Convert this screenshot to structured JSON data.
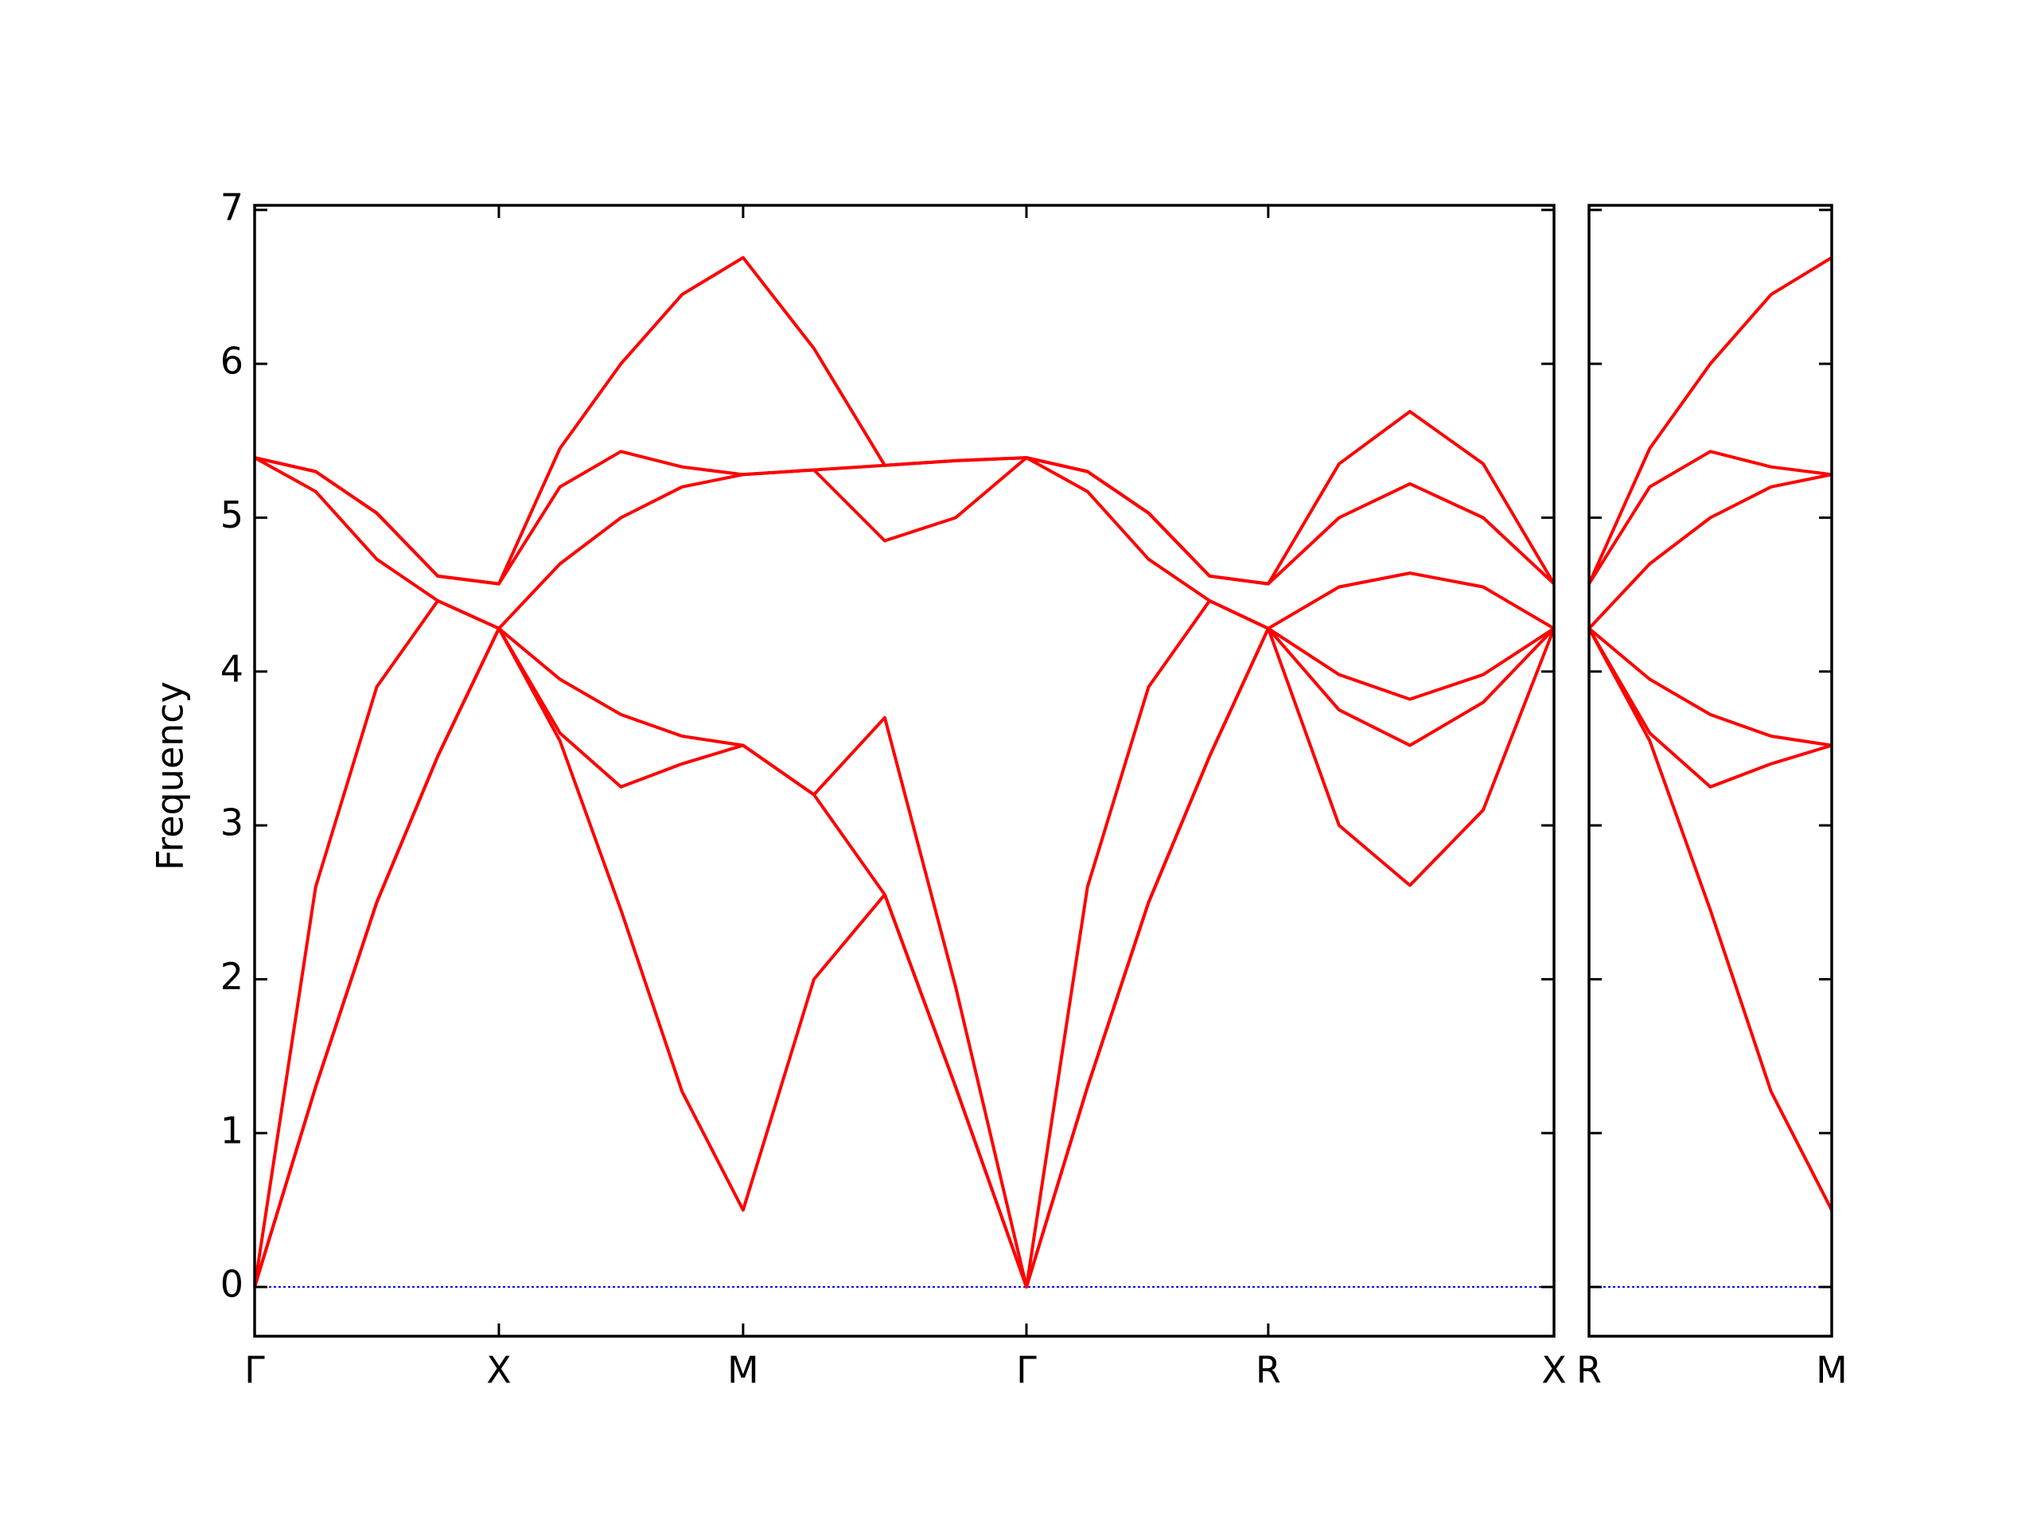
{
  "chart_data": [
    {
      "type": "line",
      "ylabel": "Frequency",
      "x": [
        0,
        0.25,
        0.5,
        0.75,
        1,
        1.25,
        1.5,
        1.75,
        2,
        2.29,
        2.58,
        2.87,
        3.16,
        3.41,
        3.66,
        3.91,
        4.15,
        4.44,
        4.73,
        5.03,
        5.32
      ],
      "xlim": [
        0,
        5.32
      ],
      "xticks": [
        {
          "value": 0,
          "label": "Γ"
        },
        {
          "value": 1,
          "label": "X"
        },
        {
          "value": 2,
          "label": "M"
        },
        {
          "value": 3.16,
          "label": "Γ"
        },
        {
          "value": 4.15,
          "label": "R"
        },
        {
          "value": 5.32,
          "label": "X"
        }
      ],
      "ylim": [
        -0.32,
        7.03
      ],
      "yticks": [
        0,
        1,
        2,
        3,
        4,
        5,
        6,
        7
      ],
      "zero_line_color": "#0000ff",
      "series": [
        {
          "color": "#ff0000",
          "values": [
            0,
            1.3,
            2.5,
            3.45,
            4.28,
            3.55,
            2.45,
            1.27,
            0.5,
            2.0,
            2.55,
            1.3,
            0,
            1.3,
            2.5,
            3.45,
            4.28,
            3.0,
            2.61,
            3.1,
            4.28
          ]
        },
        {
          "color": "#ff0000",
          "values": [
            0,
            1.3,
            2.5,
            3.45,
            4.28,
            3.6,
            3.25,
            3.4,
            3.52,
            3.2,
            2.55,
            1.3,
            0,
            1.3,
            2.5,
            3.45,
            4.28,
            3.75,
            3.52,
            3.8,
            4.28
          ]
        },
        {
          "color": "#ff0000",
          "values": [
            0,
            2.6,
            3.9,
            4.46,
            4.28,
            3.95,
            3.72,
            3.58,
            3.52,
            3.2,
            3.7,
            1.95,
            0,
            2.6,
            3.9,
            4.46,
            4.28,
            3.98,
            3.82,
            3.98,
            4.28
          ]
        },
        {
          "color": "#ff0000",
          "values": [
            5.39,
            5.17,
            4.73,
            4.46,
            4.28,
            4.7,
            5.0,
            5.2,
            5.28,
            5.31,
            4.85,
            5.0,
            5.39,
            5.17,
            4.73,
            4.46,
            4.28,
            4.55,
            4.64,
            4.55,
            4.28
          ]
        },
        {
          "color": "#ff0000",
          "values": [
            5.39,
            5.3,
            5.03,
            4.62,
            4.57,
            5.2,
            5.43,
            5.33,
            5.28,
            5.31,
            5.34,
            5.37,
            5.39,
            5.3,
            5.03,
            4.62,
            4.57,
            5.0,
            5.22,
            5.0,
            4.57
          ]
        },
        {
          "color": "#ff0000",
          "values": [
            5.39,
            5.3,
            5.03,
            4.62,
            4.57,
            5.45,
            6.0,
            6.45,
            6.69,
            6.1,
            5.34,
            5.37,
            5.39,
            5.3,
            5.03,
            4.62,
            4.57,
            5.35,
            5.69,
            5.35,
            4.57
          ]
        }
      ]
    },
    {
      "type": "line",
      "x": [
        0,
        0.25,
        0.5,
        0.75,
        1
      ],
      "xlim": [
        0,
        1
      ],
      "xticks": [
        {
          "value": 0,
          "label": "R"
        },
        {
          "value": 1,
          "label": "M"
        }
      ],
      "ylim": [
        -0.32,
        7.03
      ],
      "yticks": [
        0,
        1,
        2,
        3,
        4,
        5,
        6,
        7
      ],
      "zero_line_color": "#0000ff",
      "series": [
        {
          "color": "#ff0000",
          "values": [
            4.28,
            3.55,
            2.45,
            1.27,
            0.5
          ]
        },
        {
          "color": "#ff0000",
          "values": [
            4.28,
            3.6,
            3.25,
            3.4,
            3.52
          ]
        },
        {
          "color": "#ff0000",
          "values": [
            4.28,
            3.95,
            3.72,
            3.58,
            3.52
          ]
        },
        {
          "color": "#ff0000",
          "values": [
            4.28,
            4.7,
            5.0,
            5.2,
            5.28
          ]
        },
        {
          "color": "#ff0000",
          "values": [
            4.57,
            5.2,
            5.43,
            5.33,
            5.28
          ]
        },
        {
          "color": "#ff0000",
          "values": [
            4.57,
            5.45,
            6.0,
            6.45,
            6.69
          ]
        }
      ]
    }
  ]
}
